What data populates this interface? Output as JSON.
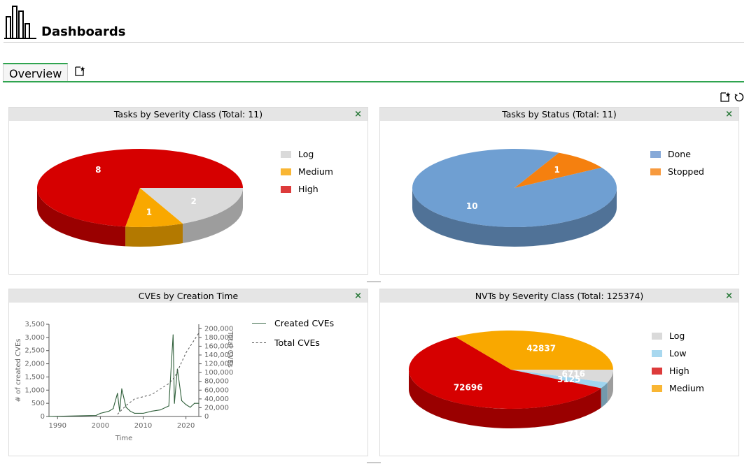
{
  "header": {
    "title": "Dashboards",
    "icon": "bar-chart-icon"
  },
  "tabs": [
    {
      "label": "Overview",
      "active": true
    }
  ],
  "toolbar": {
    "new_icon": "new-dashboard-icon",
    "reset_icon": "reset-icon"
  },
  "colors": {
    "accent": "#2fa44f",
    "log": "#dadada",
    "medium": "#f9a800",
    "high": "#d60000",
    "low": "#9fd4ef",
    "done": "#6f9fd2",
    "stopped": "#f5800f"
  },
  "panels": {
    "tasks_severity": {
      "title": "Tasks by Severity Class (Total: 11)",
      "close": "×",
      "legend": [
        "Log",
        "Medium",
        "High"
      ]
    },
    "tasks_status": {
      "title": "Tasks by Status (Total: 11)",
      "close": "×",
      "legend": [
        "Done",
        "Stopped"
      ]
    },
    "cves_time": {
      "title": "CVEs by Creation Time",
      "close": "×",
      "legend": [
        "Created CVEs",
        "Total CVEs"
      ]
    },
    "nvts_severity": {
      "title": "NVTs by Severity Class (Total: 125374)",
      "close": "×",
      "legend": [
        "Log",
        "Low",
        "High",
        "Medium"
      ]
    }
  },
  "chart_data": [
    {
      "type": "pie",
      "title": "Tasks by Severity Class (Total: 11)",
      "categories": [
        "Log",
        "Medium",
        "High"
      ],
      "values": [
        2,
        1,
        8
      ],
      "colors": [
        "#dadada",
        "#f9a800",
        "#d60000"
      ]
    },
    {
      "type": "pie",
      "title": "Tasks by Status (Total: 11)",
      "categories": [
        "Done",
        "Stopped"
      ],
      "values": [
        10,
        1
      ],
      "colors": [
        "#6f9fd2",
        "#f5800f"
      ]
    },
    {
      "type": "line",
      "title": "CVEs by Creation Time",
      "xlabel": "Time",
      "ylabel": "# of created CVEs",
      "y2label": "Total CVEs",
      "xlim": [
        1988,
        2023
      ],
      "ylim": [
        0,
        3500
      ],
      "y2lim": [
        0,
        210000
      ],
      "xticks": [
        "1990",
        "2000",
        "2010",
        "2020"
      ],
      "yticks": [
        "0",
        "500",
        "1,000",
        "1,500",
        "2,000",
        "2,500",
        "3,000",
        "3,500"
      ],
      "y2ticks": [
        "0",
        "20,000",
        "40,000",
        "60,000",
        "80,000",
        "100,000",
        "120,000",
        "140,000",
        "160,000",
        "180,000",
        "200,000"
      ],
      "series": [
        {
          "name": "Created CVEs",
          "style": "solid",
          "x": [
            1988,
            1999,
            2000,
            2002,
            2003,
            2004,
            2004.5,
            2005,
            2005.5,
            2006,
            2007,
            2008,
            2010,
            2012,
            2014,
            2016,
            2017,
            2017.3,
            2018,
            2019,
            2020,
            2021,
            2022,
            2023
          ],
          "y": [
            0,
            40,
            120,
            200,
            300,
            880,
            200,
            1050,
            700,
            350,
            200,
            120,
            120,
            200,
            250,
            400,
            3100,
            500,
            1800,
            600,
            450,
            350,
            500,
            500
          ]
        },
        {
          "name": "Total CVEs",
          "style": "dashed",
          "x": [
            2004,
            2006,
            2008,
            2012,
            2016,
            2017.4,
            2020,
            2023
          ],
          "y": [
            5000,
            25000,
            40000,
            50000,
            75000,
            90000,
            145000,
            190000
          ]
        }
      ]
    },
    {
      "type": "pie",
      "title": "NVTs by Severity Class (Total: 125374)",
      "categories": [
        "Log",
        "Low",
        "High",
        "Medium"
      ],
      "values": [
        6716,
        3125,
        72696,
        42837
      ],
      "colors": [
        "#dadada",
        "#9fd4ef",
        "#d60000",
        "#f9a800"
      ]
    }
  ]
}
